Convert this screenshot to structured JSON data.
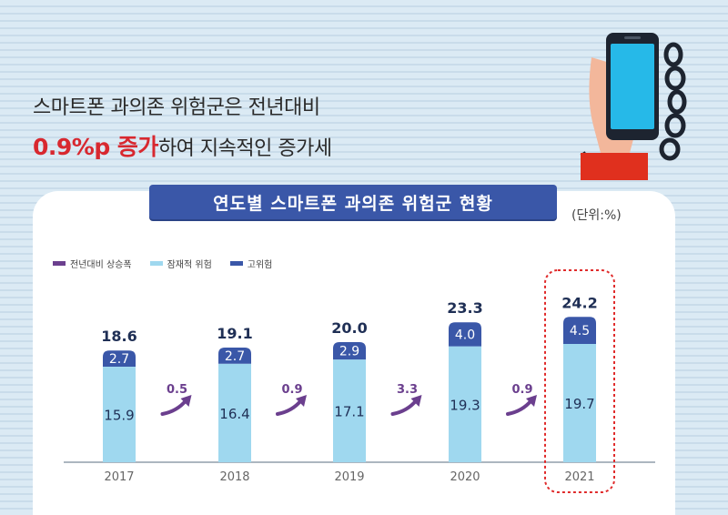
{
  "headline": {
    "line1": "스마트폰 과의존 위험군은 전년대비",
    "highlight": "0.9%p 증가",
    "line2_rest": "하여 지속적인 증가세"
  },
  "chart_title": "연도별 스마트폰 과의존 위험군 현황",
  "unit_label": "(단위:%)",
  "colors": {
    "increase": "#6b3f8e",
    "potential": "#9fd8ef",
    "high": "#3a57a8",
    "total_label": "#1f2f55",
    "highlight_box": "#e02b2b"
  },
  "chart_data": {
    "type": "bar",
    "stacked": true,
    "categories": [
      "2017",
      "2018",
      "2019",
      "2020",
      "2021"
    ],
    "series": [
      {
        "name": "잠재적 위험",
        "values": [
          15.9,
          16.4,
          17.1,
          19.3,
          19.7
        ]
      },
      {
        "name": "고위험",
        "values": [
          2.7,
          2.7,
          2.9,
          4.0,
          4.5
        ]
      }
    ],
    "totals": [
      "18.6",
      "19.1",
      "20.0",
      "23.3",
      "24.2"
    ],
    "labels_potential": [
      "15.9",
      "16.4",
      "17.1",
      "19.3",
      "19.7"
    ],
    "labels_high": [
      "2.7",
      "2.7",
      "2.9",
      "4.0",
      "4.5"
    ],
    "increase_name": "전년대비 상승폭",
    "increases": [
      "0.5",
      "0.9",
      "3.3",
      "0.9"
    ],
    "highlighted_category": "2021",
    "ylim": [
      0,
      25
    ]
  },
  "legend": [
    {
      "label": "전년대비 상승폭",
      "color": "#6b3f8e"
    },
    {
      "label": "잠재적 위험",
      "color": "#9fd8ef"
    },
    {
      "label": "고위험",
      "color": "#3a57a8"
    }
  ]
}
